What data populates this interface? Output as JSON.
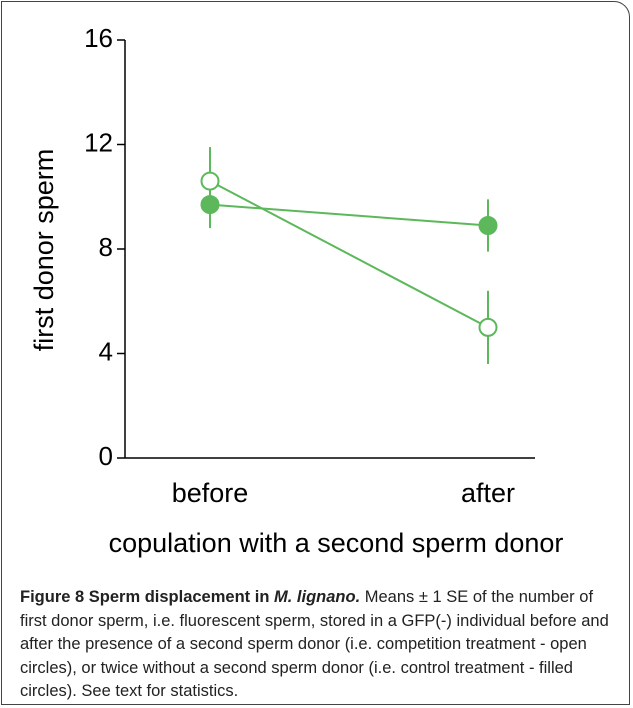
{
  "chart_data": {
    "type": "line",
    "categories": [
      "before",
      "after"
    ],
    "xlabel": "copulation with a second sperm donor",
    "ylabel": "first donor sperm",
    "ylim": [
      0,
      16
    ],
    "yticks": [
      0,
      4,
      8,
      12,
      16
    ],
    "series": [
      {
        "color": "#5cb85a",
        "marker": "open",
        "values": [
          10.6,
          5.0
        ],
        "errors": [
          1.3,
          1.4
        ]
      },
      {
        "color": "#5cb85a",
        "marker": "filled",
        "values": [
          9.7,
          8.9
        ],
        "errors": [
          0.9,
          1.0
        ]
      }
    ],
    "caption": {
      "title": "Figure 8 Sperm displacement in",
      "species": "M. lignano.",
      "text": "Means ± 1 SE of the number of first donor sperm, i.e. fluorescent sperm, stored in a GFP(-) individual before and after the presence of a second sperm donor (i.e. competition treatment - open circles), or twice without a second sperm donor (i.e. control treatment - filled circles). See text for statistics."
    }
  }
}
